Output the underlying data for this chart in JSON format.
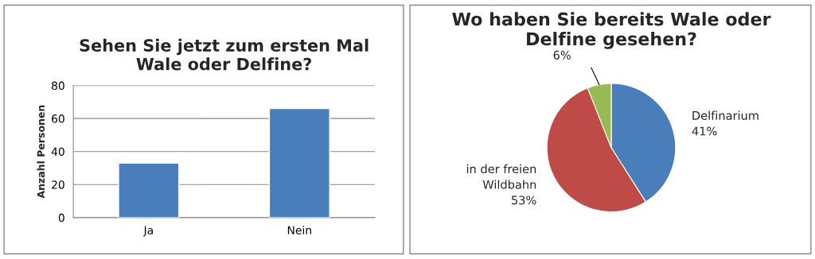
{
  "chart_data": [
    {
      "type": "bar",
      "title": "Sehen Sie jetzt zum ersten Mal\nWale oder Delfine?",
      "ylabel": "Anzahl Personen",
      "categories": [
        "Ja",
        "Nein"
      ],
      "values": [
        33,
        66
      ],
      "color": "#4a7ebb",
      "ylim": [
        0,
        80
      ],
      "yticks": [
        0,
        20,
        40,
        60,
        80
      ],
      "grid": "y"
    },
    {
      "type": "pie",
      "title": "Wo haben Sie bereits Wale oder\nDelfine gesehen?",
      "categories": [
        "Delfinarium",
        "in der freien\nWildbahn",
        null
      ],
      "values": [
        41,
        53,
        6
      ],
      "value_labels": [
        "41%",
        "53%",
        "6%"
      ],
      "colors": [
        "#4a7ebb",
        "#be4b48",
        "#98b954"
      ]
    }
  ]
}
